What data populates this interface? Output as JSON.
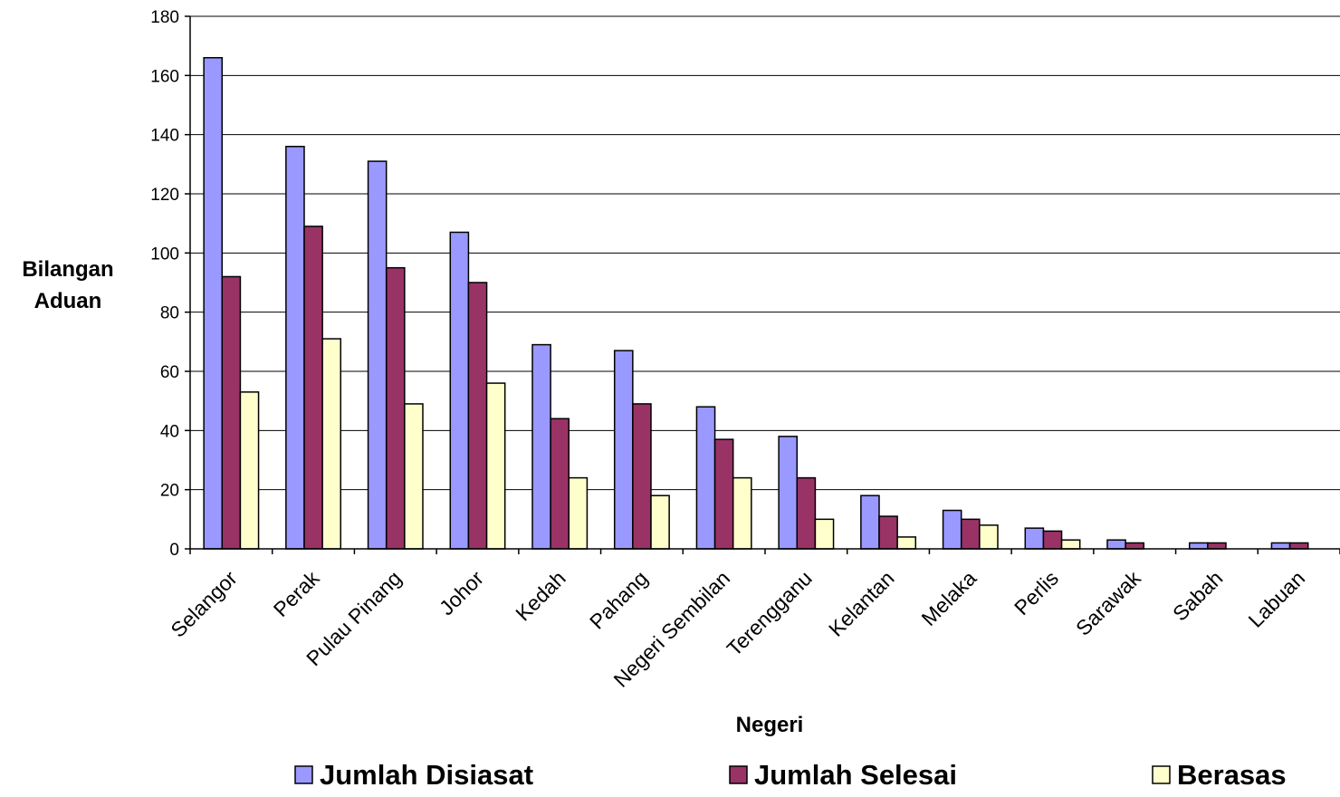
{
  "chart_data": {
    "type": "bar",
    "title": "",
    "xlabel": "Negeri",
    "ylabel": [
      "Bilangan",
      "Aduan"
    ],
    "ylim": [
      0,
      180
    ],
    "yticks": [
      0,
      20,
      40,
      60,
      80,
      100,
      120,
      140,
      160,
      180
    ],
    "grid": true,
    "legend_position": "bottom",
    "categories": [
      "Selangor",
      "Perak",
      "Pulau Pinang",
      "Johor",
      "Kedah",
      "Pahang",
      "Negeri Sembilan",
      "Terengganu",
      "Kelantan",
      "Melaka",
      "Perlis",
      "Sarawak",
      "Sabah",
      "Labuan"
    ],
    "series": [
      {
        "name": "Jumlah Disiasat",
        "color": "#9999ff",
        "values": [
          166,
          136,
          131,
          107,
          69,
          67,
          48,
          38,
          18,
          13,
          7,
          3,
          2,
          2
        ]
      },
      {
        "name": "Jumlah Selesai",
        "color": "#993366",
        "values": [
          92,
          109,
          95,
          90,
          44,
          49,
          37,
          24,
          11,
          10,
          6,
          2,
          2,
          2
        ]
      },
      {
        "name": "Berasas",
        "color": "#ffffcc",
        "values": [
          53,
          71,
          49,
          56,
          24,
          18,
          24,
          10,
          4,
          8,
          3,
          0,
          0,
          0
        ]
      }
    ]
  }
}
